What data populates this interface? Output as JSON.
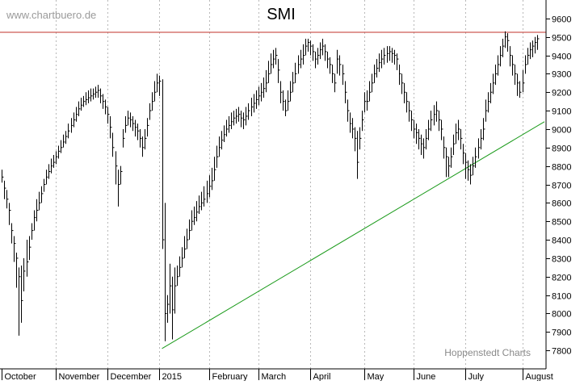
{
  "watermark": "www.chartbuero.de",
  "credit": "Hoppenstedt Charts",
  "chart_data": {
    "type": "bar",
    "subtype": "ohlc-high-low",
    "title": "SMI",
    "xlabel": "",
    "ylabel": "",
    "ylim": [
      7700,
      9700
    ],
    "y_axis_side": "right",
    "y_ticks": [
      7800,
      7900,
      8000,
      8100,
      8200,
      8300,
      8400,
      8500,
      8600,
      8700,
      8800,
      8900,
      9000,
      9100,
      9200,
      9300,
      9400,
      9500,
      9600
    ],
    "x_tick_labels": [
      "October",
      "November",
      "December",
      "2015",
      "February",
      "March",
      "April",
      "May",
      "June",
      "July",
      "August"
    ],
    "x_range": [
      0,
      220
    ],
    "month_starts": [
      0,
      22,
      43,
      64,
      84,
      104,
      125,
      147,
      167,
      188,
      211
    ],
    "grid": "vertical dotted lines at month starts",
    "resistance_line": {
      "value": 9525,
      "color": "#c0302a"
    },
    "support_trendline": {
      "from": [
        65,
        7810
      ],
      "to": [
        220,
        9040
      ],
      "color": "#1a9a1a"
    },
    "series": [
      {
        "close": [
          8740,
          8680,
          8620,
          8560,
          8450,
          8380,
          8300,
          8200,
          8070,
          8230,
          8280,
          8360,
          8450,
          8520,
          8560,
          8600,
          8650,
          8700,
          8740,
          8770,
          8800,
          8820,
          8850,
          8880,
          8900,
          8930,
          8960,
          8990,
          9020,
          9050,
          9080,
          9110,
          9130,
          9150,
          9160,
          9170,
          9180,
          9190,
          9200,
          9210,
          9180,
          9150,
          9120,
          9080,
          9010,
          8900,
          8800,
          8700,
          8770,
          8950,
          9020,
          9060,
          9050,
          9030,
          9010,
          8990,
          8950,
          8900,
          8950,
          9020,
          9100,
          9150,
          9200,
          9250,
          9260,
          8400,
          8000,
          8050,
          8150,
          8020,
          8150,
          8200,
          8250,
          8300,
          8350,
          8400,
          8450,
          8500,
          8520,
          8550,
          8580,
          8600,
          8620,
          8650,
          8690,
          8720,
          8780,
          8850,
          8900,
          8940,
          8970,
          9000,
          9020,
          9040,
          9060,
          9070,
          9080,
          9060,
          9050,
          9070,
          9100,
          9120,
          9140,
          9160,
          9180,
          9200,
          9220,
          9250,
          9300,
          9350,
          9380,
          9400,
          9320,
          9200,
          9150,
          9100,
          9150,
          9200,
          9250,
          9300,
          9350,
          9380,
          9400,
          9450,
          9470,
          9450,
          9420,
          9380,
          9400,
          9430,
          9450,
          9420,
          9380,
          9350,
          9300,
          9250,
          9380,
          9350,
          9300,
          9200,
          9100,
          9030,
          9000,
          8950,
          8820,
          8950,
          9050,
          9150,
          9150,
          9200,
          9250,
          9300,
          9330,
          9360,
          9380,
          9400,
          9410,
          9420,
          9410,
          9400,
          9380,
          9300,
          9250,
          9200,
          9150,
          9100,
          9050,
          9000,
          8980,
          8950,
          8920,
          8900,
          8950,
          9000,
          9050,
          9080,
          9100,
          9050,
          9000,
          8900,
          8850,
          8800,
          8850,
          8920,
          8980,
          9000,
          8950,
          8870,
          8820,
          8780,
          8750,
          8800,
          8850,
          8900,
          8950,
          9000,
          9100,
          9150,
          9200,
          9250,
          9300,
          9350,
          9400,
          9450,
          9500,
          9480,
          9400,
          9350,
          9300,
          9250,
          9200,
          9250,
          9350,
          9400,
          9430,
          9450,
          9470,
          9490
        ],
        "ranges": [
          [
            8710,
            8780
          ],
          [
            8620,
            8720
          ],
          [
            8570,
            8670
          ],
          [
            8480,
            8600
          ],
          [
            8380,
            8490
          ],
          [
            8280,
            8420
          ],
          [
            8140,
            8330
          ],
          [
            7880,
            8250
          ],
          [
            7950,
            8260
          ],
          [
            8120,
            8300
          ],
          [
            8200,
            8400
          ],
          [
            8290,
            8420
          ],
          [
            8400,
            8490
          ],
          [
            8450,
            8560
          ],
          [
            8500,
            8620
          ],
          [
            8560,
            8660
          ],
          [
            8600,
            8690
          ],
          [
            8660,
            8730
          ],
          [
            8700,
            8780
          ],
          [
            8730,
            8810
          ],
          [
            8760,
            8840
          ],
          [
            8790,
            8860
          ],
          [
            8810,
            8880
          ],
          [
            8840,
            8910
          ],
          [
            8870,
            8940
          ],
          [
            8900,
            8970
          ],
          [
            8920,
            8990
          ],
          [
            8950,
            9030
          ],
          [
            8980,
            9060
          ],
          [
            9010,
            9090
          ],
          [
            9040,
            9120
          ],
          [
            9070,
            9150
          ],
          [
            9100,
            9170
          ],
          [
            9120,
            9180
          ],
          [
            9130,
            9200
          ],
          [
            9140,
            9210
          ],
          [
            9150,
            9220
          ],
          [
            9160,
            9220
          ],
          [
            9170,
            9230
          ],
          [
            9170,
            9240
          ],
          [
            9140,
            9220
          ],
          [
            9110,
            9190
          ],
          [
            9080,
            9160
          ],
          [
            9030,
            9120
          ],
          [
            8950,
            9070
          ],
          [
            8850,
            8980
          ],
          [
            8700,
            8880
          ],
          [
            8580,
            8780
          ],
          [
            8700,
            8800
          ],
          [
            8900,
            9000
          ],
          [
            8980,
            9070
          ],
          [
            9020,
            9100
          ],
          [
            9010,
            9090
          ],
          [
            8990,
            9070
          ],
          [
            8960,
            9050
          ],
          [
            8940,
            9030
          ],
          [
            8900,
            9000
          ],
          [
            8850,
            8960
          ],
          [
            8890,
            9000
          ],
          [
            8960,
            9060
          ],
          [
            9050,
            9140
          ],
          [
            9100,
            9200
          ],
          [
            9150,
            9260
          ],
          [
            9200,
            9300
          ],
          [
            9180,
            9290
          ],
          [
            8350,
            9270
          ],
          [
            7850,
            8600
          ],
          [
            7950,
            8100
          ],
          [
            8000,
            8270
          ],
          [
            7860,
            8200
          ],
          [
            8000,
            8250
          ],
          [
            8150,
            8260
          ],
          [
            8200,
            8310
          ],
          [
            8250,
            8360
          ],
          [
            8300,
            8420
          ],
          [
            8350,
            8460
          ],
          [
            8400,
            8510
          ],
          [
            8450,
            8560
          ],
          [
            8480,
            8580
          ],
          [
            8500,
            8610
          ],
          [
            8540,
            8640
          ],
          [
            8560,
            8660
          ],
          [
            8580,
            8690
          ],
          [
            8600,
            8720
          ],
          [
            8630,
            8750
          ],
          [
            8670,
            8790
          ],
          [
            8720,
            8850
          ],
          [
            8790,
            8910
          ],
          [
            8850,
            8960
          ],
          [
            8890,
            8990
          ],
          [
            8930,
            9020
          ],
          [
            8960,
            9050
          ],
          [
            8980,
            9070
          ],
          [
            9000,
            9090
          ],
          [
            9020,
            9100
          ],
          [
            9030,
            9110
          ],
          [
            9040,
            9120
          ],
          [
            9010,
            9100
          ],
          [
            9000,
            9090
          ],
          [
            9020,
            9120
          ],
          [
            9050,
            9140
          ],
          [
            9070,
            9170
          ],
          [
            9090,
            9190
          ],
          [
            9110,
            9210
          ],
          [
            9130,
            9230
          ],
          [
            9150,
            9250
          ],
          [
            9170,
            9280
          ],
          [
            9200,
            9320
          ],
          [
            9250,
            9370
          ],
          [
            9300,
            9410
          ],
          [
            9330,
            9430
          ],
          [
            9350,
            9440
          ],
          [
            9250,
            9380
          ],
          [
            9140,
            9260
          ],
          [
            9100,
            9210
          ],
          [
            9070,
            9160
          ],
          [
            9100,
            9210
          ],
          [
            9150,
            9260
          ],
          [
            9200,
            9310
          ],
          [
            9250,
            9360
          ],
          [
            9300,
            9400
          ],
          [
            9330,
            9430
          ],
          [
            9350,
            9460
          ],
          [
            9400,
            9490
          ],
          [
            9420,
            9490
          ],
          [
            9400,
            9480
          ],
          [
            9370,
            9460
          ],
          [
            9330,
            9420
          ],
          [
            9350,
            9440
          ],
          [
            9380,
            9470
          ],
          [
            9400,
            9490
          ],
          [
            9370,
            9460
          ],
          [
            9330,
            9420
          ],
          [
            9300,
            9390
          ],
          [
            9250,
            9350
          ],
          [
            9200,
            9300
          ],
          [
            9300,
            9430
          ],
          [
            9290,
            9400
          ],
          [
            9240,
            9350
          ],
          [
            9140,
            9260
          ],
          [
            9040,
            9160
          ],
          [
            8980,
            9090
          ],
          [
            8950,
            9060
          ],
          [
            8880,
            9010
          ],
          [
            8730,
            8990
          ],
          [
            8890,
            9010
          ],
          [
            8990,
            9100
          ],
          [
            9090,
            9200
          ],
          [
            9100,
            9210
          ],
          [
            9150,
            9260
          ],
          [
            9200,
            9300
          ],
          [
            9250,
            9350
          ],
          [
            9280,
            9380
          ],
          [
            9310,
            9410
          ],
          [
            9330,
            9430
          ],
          [
            9350,
            9440
          ],
          [
            9360,
            9450
          ],
          [
            9370,
            9450
          ],
          [
            9360,
            9440
          ],
          [
            9350,
            9430
          ],
          [
            9320,
            9410
          ],
          [
            9240,
            9350
          ],
          [
            9190,
            9300
          ],
          [
            9140,
            9250
          ],
          [
            9090,
            9200
          ],
          [
            9040,
            9150
          ],
          [
            8990,
            9100
          ],
          [
            8950,
            9050
          ],
          [
            8920,
            9030
          ],
          [
            8890,
            9000
          ],
          [
            8860,
            8970
          ],
          [
            8840,
            8950
          ],
          [
            8890,
            9000
          ],
          [
            8940,
            9050
          ],
          [
            8990,
            9100
          ],
          [
            9020,
            9130
          ],
          [
            9040,
            9150
          ],
          [
            8990,
            9100
          ],
          [
            8940,
            9050
          ],
          [
            8840,
            8960
          ],
          [
            8740,
            8900
          ],
          [
            8740,
            8850
          ],
          [
            8790,
            8900
          ],
          [
            8860,
            8970
          ],
          [
            8920,
            9030
          ],
          [
            8940,
            9050
          ],
          [
            8890,
            9000
          ],
          [
            8810,
            8920
          ],
          [
            8730,
            8870
          ],
          [
            8720,
            8830
          ],
          [
            8700,
            8810
          ],
          [
            8750,
            8850
          ],
          [
            8790,
            8900
          ],
          [
            8840,
            8950
          ],
          [
            8890,
            9000
          ],
          [
            8940,
            9060
          ],
          [
            9040,
            9160
          ],
          [
            9090,
            9200
          ],
          [
            9140,
            9250
          ],
          [
            9190,
            9300
          ],
          [
            9240,
            9350
          ],
          [
            9290,
            9400
          ],
          [
            9340,
            9450
          ],
          [
            9390,
            9490
          ],
          [
            9440,
            9530
          ],
          [
            9420,
            9520
          ],
          [
            9340,
            9450
          ],
          [
            9290,
            9400
          ],
          [
            9240,
            9350
          ],
          [
            9180,
            9300
          ],
          [
            9170,
            9260
          ],
          [
            9200,
            9320
          ],
          [
            9300,
            9400
          ],
          [
            9350,
            9440
          ],
          [
            9380,
            9470
          ],
          [
            9390,
            9480
          ],
          [
            9410,
            9500
          ],
          [
            9430,
            9510
          ]
        ]
      }
    ]
  }
}
